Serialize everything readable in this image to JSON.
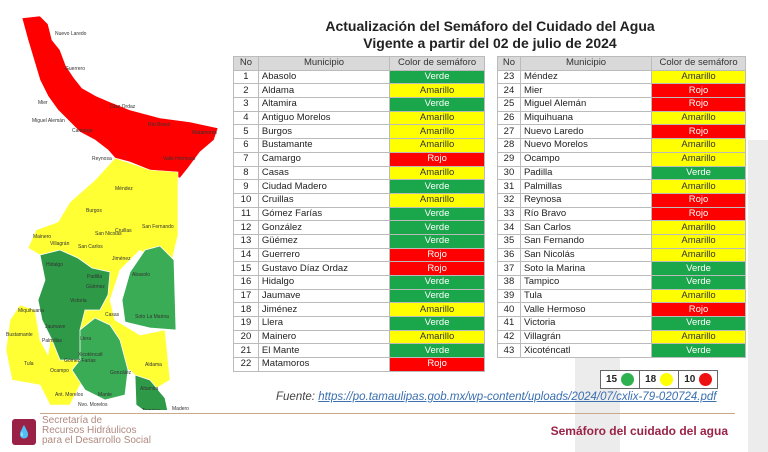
{
  "title_line1": "Actualización del Semáforo del Cuidado del Agua",
  "title_line2": "Vigente a partir del 02 de julio de 2024",
  "colors": {
    "Verde": "#1aa64a",
    "Amarillo": "#ffff00",
    "Rojo": "#ff0000",
    "brand": "#9b2247"
  },
  "table_headers": [
    "No",
    "Municipio",
    "Color de semáforo"
  ],
  "left_rows": [
    [
      "1",
      "Abasolo",
      "Verde"
    ],
    [
      "2",
      "Aldama",
      "Amarillo"
    ],
    [
      "3",
      "Altamira",
      "Verde"
    ],
    [
      "4",
      "Antiguo Morelos",
      "Amarillo"
    ],
    [
      "5",
      "Burgos",
      "Amarillo"
    ],
    [
      "6",
      "Bustamante",
      "Amarillo"
    ],
    [
      "7",
      "Camargo",
      "Rojo"
    ],
    [
      "8",
      "Casas",
      "Amarillo"
    ],
    [
      "9",
      "Ciudad Madero",
      "Verde"
    ],
    [
      "10",
      "Cruillas",
      "Amarillo"
    ],
    [
      "11",
      "Gómez Farías",
      "Verde"
    ],
    [
      "12",
      "González",
      "Verde"
    ],
    [
      "13",
      "Güémez",
      "Verde"
    ],
    [
      "14",
      "Guerrero",
      "Rojo"
    ],
    [
      "15",
      "Gustavo Díaz Ordaz",
      "Rojo"
    ],
    [
      "16",
      "Hidalgo",
      "Verde"
    ],
    [
      "17",
      "Jaumave",
      "Verde"
    ],
    [
      "18",
      "Jiménez",
      "Amarillo"
    ],
    [
      "19",
      "Llera",
      "Verde"
    ],
    [
      "20",
      "Mainero",
      "Amarillo"
    ],
    [
      "21",
      "El Mante",
      "Verde"
    ],
    [
      "22",
      "Matamoros",
      "Rojo"
    ]
  ],
  "right_rows": [
    [
      "23",
      "Méndez",
      "Amarillo"
    ],
    [
      "24",
      "Mier",
      "Rojo"
    ],
    [
      "25",
      "Miguel Alemán",
      "Rojo"
    ],
    [
      "26",
      "Miquihuana",
      "Amarillo"
    ],
    [
      "27",
      "Nuevo Laredo",
      "Rojo"
    ],
    [
      "28",
      "Nuevo Morelos",
      "Amarillo"
    ],
    [
      "29",
      "Ocampo",
      "Amarillo"
    ],
    [
      "30",
      "Padilla",
      "Verde"
    ],
    [
      "31",
      "Palmillas",
      "Amarillo"
    ],
    [
      "32",
      "Reynosa",
      "Rojo"
    ],
    [
      "33",
      "Río Bravo",
      "Rojo"
    ],
    [
      "34",
      "San Carlos",
      "Amarillo"
    ],
    [
      "35",
      "San Fernando",
      "Amarillo"
    ],
    [
      "36",
      "San Nicolás",
      "Amarillo"
    ],
    [
      "37",
      "Soto la Marina",
      "Verde"
    ],
    [
      "38",
      "Tampico",
      "Verde"
    ],
    [
      "39",
      "Tula",
      "Amarillo"
    ],
    [
      "40",
      "Valle Hermoso",
      "Rojo"
    ],
    [
      "41",
      "Victoria",
      "Verde"
    ],
    [
      "42",
      "Villagrán",
      "Amarillo"
    ],
    [
      "43",
      "Xicoténcatl",
      "Verde"
    ]
  ],
  "legend": [
    {
      "count": "15",
      "color": "Verde"
    },
    {
      "count": "18",
      "color": "Amarillo"
    },
    {
      "count": "10",
      "color": "Rojo"
    }
  ],
  "source_label": "Fuente:",
  "source_url": "https://po.tamaulipas.gob.mx/wp-content/uploads/2024/07/cxlix-79-020724.pdf",
  "footer_title": "Semáforo del cuidado del agua",
  "org_lines": [
    "Secretaría de",
    "Recursos Hidráulicos",
    "para el Desarrollo Social"
  ],
  "map_labels": [
    {
      "t": "Nuevo Laredo",
      "x": 55,
      "y": 25
    },
    {
      "t": "Guerrero",
      "x": 65,
      "y": 60
    },
    {
      "t": "Mier",
      "x": 38,
      "y": 94
    },
    {
      "t": "Díaz Ordaz",
      "x": 110,
      "y": 98
    },
    {
      "t": "Miguel Alemán",
      "x": 32,
      "y": 112
    },
    {
      "t": "Camargo",
      "x": 72,
      "y": 122
    },
    {
      "t": "Río Bravo",
      "x": 148,
      "y": 116
    },
    {
      "t": "Matamoros",
      "x": 192,
      "y": 124
    },
    {
      "t": "Reynosa",
      "x": 92,
      "y": 150
    },
    {
      "t": "Valle Hermoso",
      "x": 163,
      "y": 150
    },
    {
      "t": "Méndez",
      "x": 115,
      "y": 180
    },
    {
      "t": "Burgos",
      "x": 86,
      "y": 202
    },
    {
      "t": "San Nicolás",
      "x": 95,
      "y": 225
    },
    {
      "t": "Cruillas",
      "x": 115,
      "y": 222
    },
    {
      "t": "San Fernando",
      "x": 142,
      "y": 218
    },
    {
      "t": "Mainero",
      "x": 33,
      "y": 228
    },
    {
      "t": "Villagrán",
      "x": 50,
      "y": 235
    },
    {
      "t": "San Carlos",
      "x": 78,
      "y": 238
    },
    {
      "t": "Hidalgo",
      "x": 46,
      "y": 256
    },
    {
      "t": "Jiménez",
      "x": 112,
      "y": 250
    },
    {
      "t": "Padilla",
      "x": 87,
      "y": 268
    },
    {
      "t": "Abasolo",
      "x": 132,
      "y": 266
    },
    {
      "t": "Güémez",
      "x": 86,
      "y": 278
    },
    {
      "t": "Victoria",
      "x": 70,
      "y": 292
    },
    {
      "t": "Miquihuana",
      "x": 18,
      "y": 302
    },
    {
      "t": "Casas",
      "x": 105,
      "y": 306
    },
    {
      "t": "Soto La Marina",
      "x": 135,
      "y": 308
    },
    {
      "t": "Jaumave",
      "x": 45,
      "y": 318
    },
    {
      "t": "Bustamante",
      "x": 6,
      "y": 326
    },
    {
      "t": "Palmillas",
      "x": 42,
      "y": 332
    },
    {
      "t": "Llera",
      "x": 80,
      "y": 330
    },
    {
      "t": "Xicoténcatl",
      "x": 78,
      "y": 346
    },
    {
      "t": "Tula",
      "x": 24,
      "y": 355
    },
    {
      "t": "Gómez Farías",
      "x": 64,
      "y": 352
    },
    {
      "t": "Ocampo",
      "x": 50,
      "y": 362
    },
    {
      "t": "Aldama",
      "x": 145,
      "y": 356
    },
    {
      "t": "González",
      "x": 110,
      "y": 364
    },
    {
      "t": "Altamira",
      "x": 140,
      "y": 380
    },
    {
      "t": "Ant. Morelos",
      "x": 55,
      "y": 386
    },
    {
      "t": "Mante",
      "x": 98,
      "y": 386
    },
    {
      "t": "Nvo. Morelos",
      "x": 78,
      "y": 396
    },
    {
      "t": "Tampico",
      "x": 142,
      "y": 402
    },
    {
      "t": "Madero",
      "x": 172,
      "y": 400
    }
  ]
}
